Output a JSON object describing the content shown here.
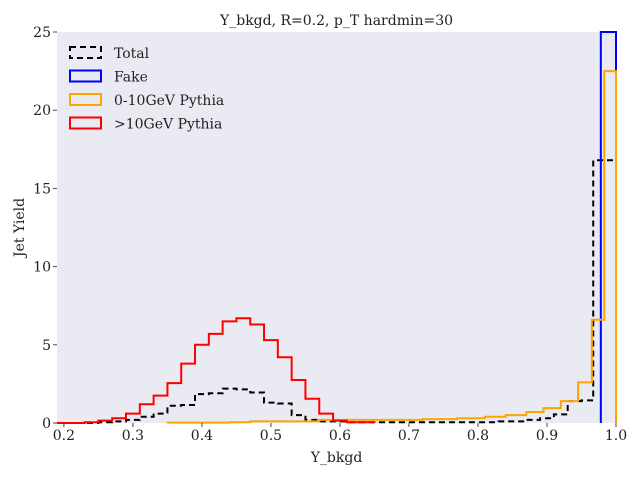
{
  "chart_data": {
    "type": "histogram",
    "title": "Y_bkgd, R=0.2, p_T hardmin=30",
    "xlabel": "Y_bkgd",
    "ylabel": "Jet Yield",
    "xlim": [
      0.19,
      1.0
    ],
    "ylim": [
      0,
      25
    ],
    "xticks": [
      "0.2",
      "0.3",
      "0.4",
      "0.5",
      "0.6",
      "0.7",
      "0.8",
      "0.9",
      "1.0"
    ],
    "yticks": [
      "0",
      "5",
      "10",
      "15",
      "20",
      "25"
    ],
    "xtick_values": [
      0.2,
      0.3,
      0.4,
      0.5,
      0.6,
      0.7,
      0.8,
      0.9,
      1.0
    ],
    "ytick_values": [
      0,
      5,
      10,
      15,
      20,
      25
    ],
    "grid": false,
    "background": "#eaeaf2",
    "legend_position": "top-left",
    "legend": [
      {
        "name": "Total",
        "color": "#000000",
        "style": "dashed"
      },
      {
        "name": "Fake",
        "color": "#0000ff",
        "style": "solid"
      },
      {
        "name": "0-10GeV Pythia",
        "color": "#ffa500",
        "style": "solid"
      },
      {
        "name": ">10GeV Pythia",
        "color": "#ff0000",
        "style": "solid"
      }
    ],
    "series": [
      {
        "name": "Total",
        "color": "#000000",
        "dash": true,
        "edges": [
          0.19,
          0.25,
          0.27,
          0.29,
          0.31,
          0.33,
          0.35,
          0.37,
          0.39,
          0.41,
          0.43,
          0.45,
          0.47,
          0.49,
          0.51,
          0.53,
          0.55,
          0.57,
          0.61,
          0.75,
          0.83,
          0.87,
          0.89,
          0.91,
          0.93,
          0.95,
          0.967,
          0.978,
          1.0
        ],
        "values": [
          0,
          0.05,
          0.1,
          0.2,
          0.4,
          0.6,
          1.1,
          1.15,
          1.85,
          1.9,
          2.2,
          2.15,
          1.95,
          1.3,
          1.25,
          0.5,
          0.2,
          0.1,
          0.05,
          0.05,
          0.1,
          0.2,
          0.3,
          0.55,
          1.4,
          1.45,
          16.8,
          16.8
        ]
      },
      {
        "name": "Fake",
        "color": "#0000ff",
        "dash": false,
        "edges": [
          0.978,
          1.0
        ],
        "values": [
          25
        ]
      },
      {
        "name": "0-10GeV Pythia",
        "color": "#ffa500",
        "dash": false,
        "edges": [
          0.35,
          0.44,
          0.47,
          0.57,
          0.72,
          0.77,
          0.81,
          0.84,
          0.87,
          0.895,
          0.92,
          0.945,
          0.965,
          0.983,
          1.0
        ],
        "values": [
          0.02,
          0.05,
          0.1,
          0.2,
          0.25,
          0.3,
          0.4,
          0.5,
          0.7,
          0.95,
          1.4,
          2.6,
          6.6,
          22.5
        ]
      },
      {
        "name": ">10GeV Pythia",
        "color": "#ff0000",
        "dash": false,
        "edges": [
          0.19,
          0.23,
          0.25,
          0.27,
          0.29,
          0.31,
          0.33,
          0.35,
          0.37,
          0.39,
          0.41,
          0.43,
          0.45,
          0.47,
          0.49,
          0.51,
          0.53,
          0.55,
          0.57,
          0.59,
          0.61,
          0.65
        ],
        "values": [
          0,
          0.05,
          0.15,
          0.3,
          0.6,
          1.2,
          1.75,
          2.55,
          3.8,
          5.0,
          5.7,
          6.5,
          6.7,
          6.3,
          5.3,
          4.2,
          2.75,
          1.55,
          0.6,
          0.15,
          0.05
        ]
      }
    ]
  }
}
